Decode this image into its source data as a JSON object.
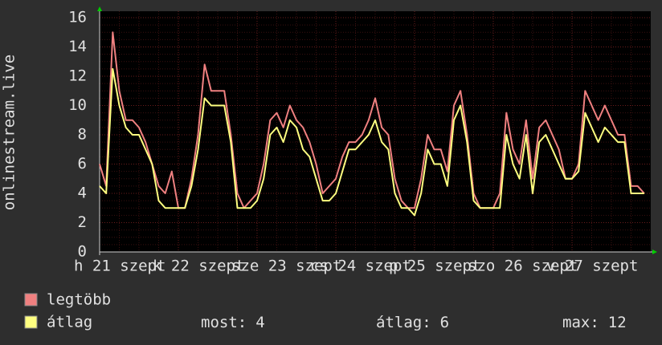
{
  "chart_data": {
    "type": "line",
    "y_label": "onlinestream.live",
    "x": [
      0,
      2,
      4,
      6,
      8,
      10,
      12,
      14,
      16,
      18,
      20,
      22,
      24,
      26,
      28,
      30,
      32,
      34,
      36,
      38,
      40,
      42,
      44,
      46,
      48,
      50,
      52,
      54,
      56,
      58,
      60,
      62,
      64,
      66,
      68,
      70,
      72,
      74,
      76,
      78,
      80,
      82,
      84,
      86,
      88,
      90,
      92,
      94,
      96,
      98,
      100,
      102,
      104,
      106,
      108,
      110,
      112,
      114,
      116,
      118,
      120,
      122,
      124,
      126,
      128,
      130,
      132,
      134,
      136,
      138,
      140,
      142,
      144,
      146,
      148,
      150,
      152,
      154,
      156,
      158,
      160,
      162,
      164,
      166
    ],
    "xlim": [
      0,
      168
    ],
    "xticks": [
      {
        "value": 0,
        "label": "h 21 szept"
      },
      {
        "value": 24,
        "label": "k 22 szept"
      },
      {
        "value": 48,
        "label": "sze 23 szept"
      },
      {
        "value": 72,
        "label": "cs 24 szept"
      },
      {
        "value": 96,
        "label": "p 25 szept"
      },
      {
        "value": 120,
        "label": "szo 26 szept"
      },
      {
        "value": 144,
        "label": "v 27 szept"
      }
    ],
    "ylim": [
      0,
      16
    ],
    "yticks": [
      0,
      2,
      4,
      6,
      8,
      10,
      12,
      14,
      16
    ],
    "grid": true,
    "series": [
      {
        "name": "legtöbb",
        "color": "#f08080",
        "values": [
          6,
          4.5,
          15,
          11,
          9,
          9,
          8.5,
          7.5,
          6,
          4.5,
          4,
          5.5,
          3,
          3,
          5,
          8,
          12.8,
          11,
          11,
          11,
          8,
          4,
          3,
          3.5,
          4,
          6,
          9,
          9.5,
          8.5,
          10,
          9,
          8.5,
          7.5,
          6,
          4,
          4.5,
          5,
          6.5,
          7.5,
          7.5,
          8,
          9,
          10.5,
          8.5,
          8,
          5,
          3.5,
          3,
          3,
          5,
          8,
          7,
          7,
          5.5,
          10,
          11,
          8,
          4,
          3,
          3,
          3,
          4,
          9.5,
          7,
          6,
          9,
          5,
          8.5,
          9,
          8,
          7,
          5,
          5,
          6,
          11,
          10,
          9,
          10,
          9,
          8,
          8,
          4.5,
          4.5,
          4
        ]
      },
      {
        "name": "átlag",
        "color": "#ffff80",
        "values": [
          4.5,
          4,
          12.5,
          10,
          8.5,
          8,
          8,
          7,
          6,
          3.5,
          3,
          3,
          3,
          3,
          4.5,
          7,
          10.5,
          10,
          10,
          10,
          7.5,
          3,
          3,
          3,
          3.5,
          5,
          8,
          8.5,
          7.5,
          9,
          8.5,
          7,
          6.5,
          5,
          3.5,
          3.5,
          4,
          5.5,
          7,
          7,
          7.5,
          8,
          9,
          7.5,
          7,
          4,
          3,
          3,
          2.5,
          4,
          7,
          6,
          6,
          4.5,
          9,
          10,
          7.5,
          3.5,
          3,
          3,
          3,
          3,
          8,
          6,
          5,
          8,
          4,
          7.5,
          8,
          7,
          6,
          5,
          5,
          5.5,
          9.5,
          8.5,
          7.5,
          8.5,
          8,
          7.5,
          7.5,
          4,
          4,
          4
        ]
      }
    ],
    "stats": [
      {
        "label": "most:",
        "value": 4
      },
      {
        "label": "átlag:",
        "value": 6
      },
      {
        "label": "max:",
        "value": 12
      }
    ]
  }
}
